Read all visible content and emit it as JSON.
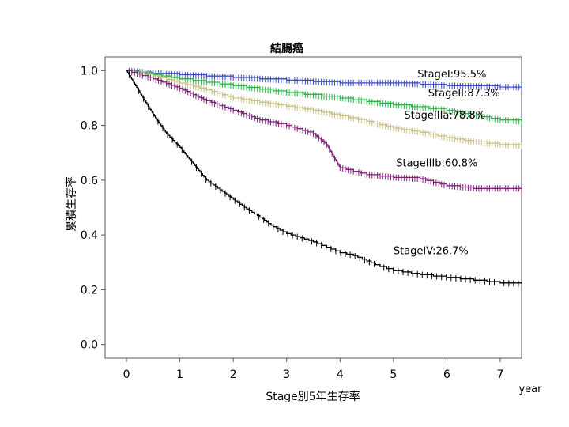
{
  "chart_data": {
    "type": "line",
    "title": "結腸癌",
    "xlabel": "Stage別5年生存率",
    "ylabel": "累積生存率",
    "x_unit": "year",
    "xlim": [
      -0.4,
      7.4
    ],
    "ylim": [
      -0.05,
      1.05
    ],
    "x_ticks": [
      0,
      1,
      2,
      3,
      4,
      5,
      6,
      7
    ],
    "y_ticks": [
      0.0,
      0.2,
      0.4,
      0.6,
      0.8,
      1.0
    ],
    "y_tick_labels": [
      "0.0",
      "0.2",
      "0.4",
      "0.6",
      "0.8",
      "1.0"
    ],
    "grid": false,
    "series": [
      {
        "label": "StageI:95.5%",
        "color": "#3b4cc0",
        "x": [
          0,
          0.5,
          1,
          2,
          3,
          4,
          5,
          6,
          7,
          7.4
        ],
        "y": [
          1.0,
          0.99,
          0.985,
          0.975,
          0.965,
          0.955,
          0.955,
          0.945,
          0.94,
          0.94
        ]
      },
      {
        "label": "StageII:87.3%",
        "color": "#2db34a",
        "x": [
          0,
          0.5,
          1,
          2,
          3,
          4,
          5,
          6,
          7,
          7.4
        ],
        "y": [
          1.0,
          0.985,
          0.97,
          0.945,
          0.92,
          0.9,
          0.875,
          0.855,
          0.82,
          0.815
        ]
      },
      {
        "label": "StageIIIa:78.8%",
        "color": "#c9c28a",
        "x": [
          0,
          0.5,
          1,
          1.5,
          2,
          2.5,
          3,
          3.5,
          4,
          4.5,
          5,
          5.5,
          6,
          6.5,
          7,
          7.4
        ],
        "y": [
          1.0,
          0.98,
          0.955,
          0.93,
          0.9,
          0.885,
          0.87,
          0.855,
          0.835,
          0.815,
          0.79,
          0.775,
          0.755,
          0.74,
          0.73,
          0.725
        ]
      },
      {
        "label": "StageIIIb:60.8%",
        "color": "#7d237a",
        "x": [
          0,
          0.5,
          1,
          1.5,
          2,
          2.5,
          3,
          3.5,
          3.75,
          4,
          4.5,
          5,
          5.5,
          6,
          6.5,
          7,
          7.4
        ],
        "y": [
          1.0,
          0.97,
          0.935,
          0.89,
          0.855,
          0.82,
          0.8,
          0.77,
          0.73,
          0.645,
          0.62,
          0.61,
          0.605,
          0.58,
          0.57,
          0.57,
          0.57
        ]
      },
      {
        "label": "StageIV:26.7%",
        "color": "#000000",
        "x": [
          0,
          0.25,
          0.5,
          0.75,
          1,
          1.25,
          1.5,
          1.75,
          2,
          2.25,
          2.5,
          2.75,
          3,
          3.25,
          3.5,
          3.75,
          4,
          4.25,
          4.5,
          4.75,
          5,
          5.5,
          6,
          6.5,
          7,
          7.4
        ],
        "y": [
          1.0,
          0.92,
          0.84,
          0.77,
          0.72,
          0.66,
          0.6,
          0.565,
          0.53,
          0.495,
          0.465,
          0.43,
          0.405,
          0.39,
          0.375,
          0.355,
          0.335,
          0.325,
          0.305,
          0.285,
          0.27,
          0.255,
          0.245,
          0.235,
          0.225,
          0.222
        ]
      }
    ]
  }
}
